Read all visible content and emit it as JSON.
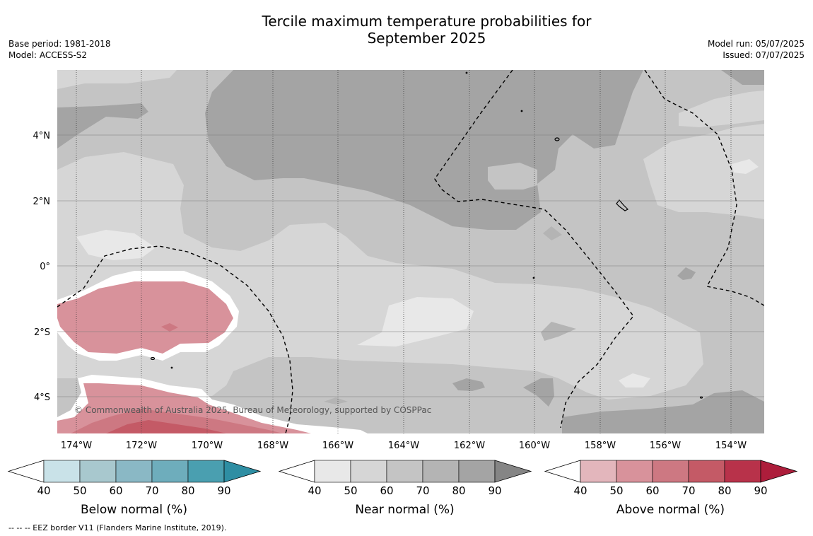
{
  "title_line1": "Tercile maximum temperature probabilities for",
  "title_line2": "September 2025",
  "base_period": "Base period: 1981-2018",
  "model": "Model: ACCESS-S2",
  "model_run": "Model run: 05/07/2025",
  "issued": "Issued: 07/07/2025",
  "copyright": "© Commonwealth of Australia 2025, Bureau of Meteorology, supported by COSPPac",
  "footnote": "--  --  -- EEZ border V11 (Flanders Marine Institute, 2019).",
  "map": {
    "lon_labels": [
      "174°W",
      "172°W",
      "170°W",
      "168°W",
      "166°W",
      "164°W",
      "162°W",
      "160°W",
      "158°W",
      "156°W",
      "154°W"
    ],
    "lat_labels": [
      "4°N",
      "2°N",
      "0°",
      "2°S",
      "4°S"
    ]
  },
  "colorbars": [
    {
      "label": "Below normal (%)",
      "ticks": [
        "40",
        "50",
        "60",
        "70",
        "80",
        "90"
      ],
      "colors": [
        "#ffffff",
        "#c9e2e8",
        "#a8c8ce",
        "#8ab8c5",
        "#6eadbc",
        "#4a9fb0",
        "#2e8ea3"
      ]
    },
    {
      "label": "Near normal (%)",
      "ticks": [
        "40",
        "50",
        "60",
        "70",
        "80",
        "90"
      ],
      "colors": [
        "#ffffff",
        "#e8e8e8",
        "#d6d6d6",
        "#c4c4c4",
        "#b4b4b4",
        "#a4a4a4",
        "#858585"
      ]
    },
    {
      "label": "Above normal (%)",
      "ticks": [
        "40",
        "50",
        "60",
        "70",
        "80",
        "90"
      ],
      "colors": [
        "#ffffff",
        "#e3b6bc",
        "#d8929b",
        "#cd7882",
        "#c45a66",
        "#b8324a",
        "#ad1d3b"
      ]
    }
  ]
}
